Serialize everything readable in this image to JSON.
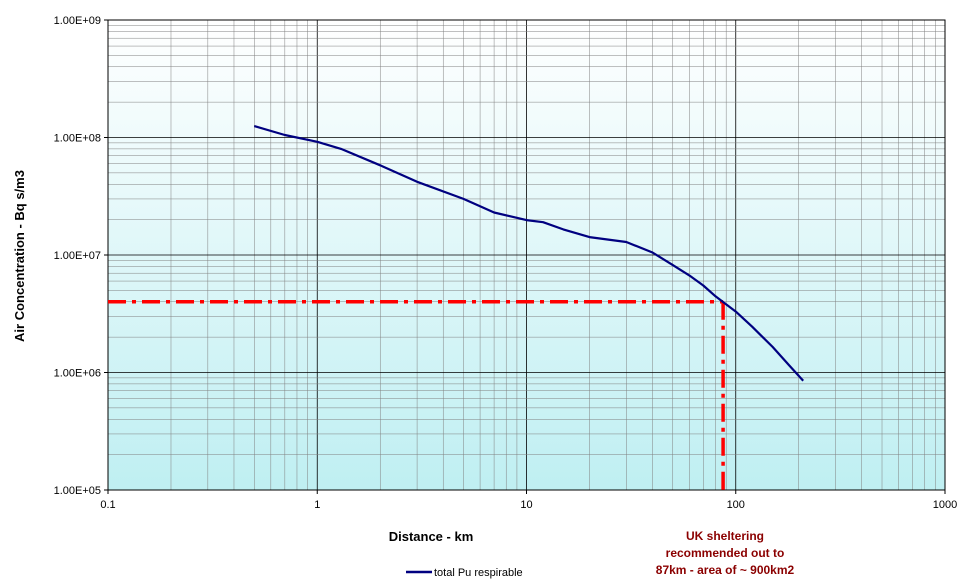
{
  "chart_data": {
    "type": "line",
    "xlabel": "Distance - km",
    "ylabel": "Air Concentration - Bq s/m3",
    "x_scale": "log",
    "y_scale": "log",
    "xlim": [
      0.1,
      1000
    ],
    "ylim": [
      100000,
      1000000000
    ],
    "grid": true,
    "x_tick_labels": [
      "0.1",
      "1",
      "10",
      "100",
      "1000"
    ],
    "y_tick_labels": [
      "1.00E+05",
      "1.00E+06",
      "1.00E+07",
      "1.00E+08",
      "1.00E+09"
    ],
    "legend_position": "bottom-center",
    "series": [
      {
        "name": "total Pu respirable",
        "color": "#000080",
        "x": [
          0.5,
          0.7,
          1.0,
          1.3,
          2.0,
          3.0,
          5.0,
          7.0,
          10.0,
          12.0,
          15.0,
          20.0,
          30.0,
          40.0,
          50.0,
          60.0,
          70.0,
          80.0,
          90.0,
          100.0,
          120.0,
          150.0,
          180.0,
          210.0
        ],
        "y": [
          125000000,
          105000000,
          92000000,
          80000000,
          58000000,
          42000000,
          30000000,
          23000000,
          19800000,
          19000000,
          16500000,
          14200000,
          12900000,
          10500000,
          8200000,
          6700000,
          5500000,
          4450000,
          3800000,
          3300000,
          2450000,
          1650000,
          1150000,
          850000
        ]
      }
    ],
    "reference_lines": {
      "color": "#ff0000",
      "x": 87,
      "y": 4000000
    },
    "annotation": {
      "lines": [
        "UK sheltering",
        "recommended out to",
        "87km - area of ~ 900km2"
      ],
      "color": "#8b0000"
    },
    "colors": {
      "plot_background_top": "#ffffff",
      "plot_background_bottom": "#bfeff2",
      "grid": "#808080"
    }
  }
}
